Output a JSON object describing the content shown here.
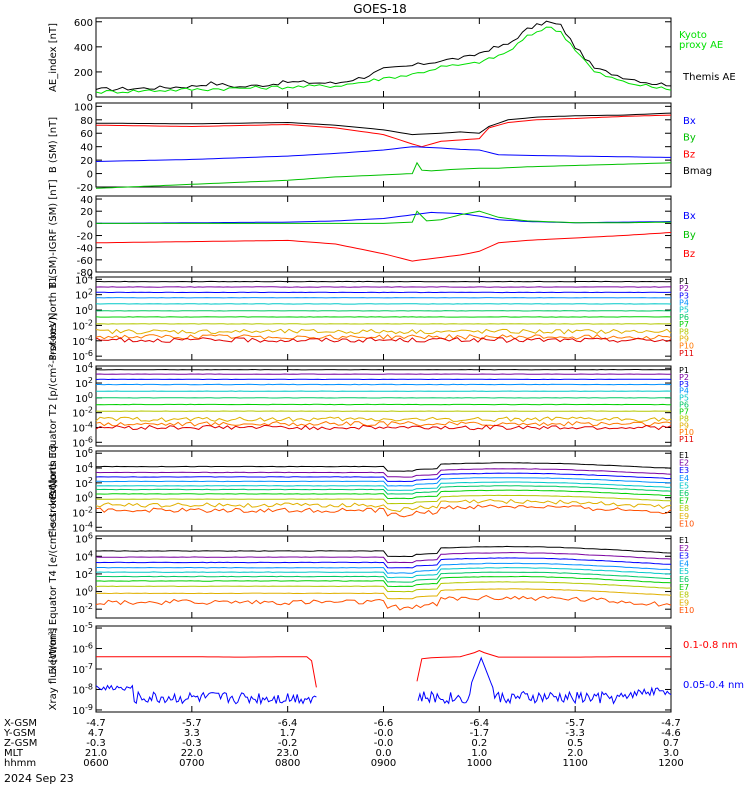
{
  "title": "GOES-18",
  "date_label": "2024 Sep 23",
  "x_axis": {
    "ticks": [
      "0600",
      "0700",
      "0800",
      "0900",
      "1000",
      "1100",
      "1200"
    ],
    "rows": [
      {
        "label": "X-GSM",
        "values": [
          "-4.7",
          "-5.7",
          "-6.4",
          "-6.6",
          "-6.4",
          "-5.7",
          "-4.7"
        ]
      },
      {
        "label": "Y-GSM",
        "values": [
          "4.7",
          "3.3",
          "1.7",
          "-0.0",
          "-1.7",
          "-3.3",
          "-4.6"
        ]
      },
      {
        "label": "Z-GSM",
        "values": [
          "-0.3",
          "-0.3",
          "-0.2",
          "-0.0",
          "0.2",
          "0.5",
          "0.7"
        ]
      },
      {
        "label": "MLT",
        "values": [
          "21.0",
          "22.0",
          "23.0",
          "0.0",
          "1.0",
          "2.0",
          "3.0"
        ]
      },
      {
        "label": "hhmm",
        "values": [
          "0600",
          "0700",
          "0800",
          "0900",
          "1000",
          "1100",
          "1200"
        ]
      }
    ]
  },
  "colors": {
    "p_channels": [
      "#000000",
      "#7a00a0",
      "#0000ff",
      "#0090ff",
      "#00c8c8",
      "#00c864",
      "#00d000",
      "#b4c800",
      "#e0b000",
      "#ff7800",
      "#e00000",
      "#a00000"
    ],
    "e_channels": [
      "#000000",
      "#7a00a0",
      "#0000ff",
      "#0090ff",
      "#00c8c8",
      "#00c864",
      "#00d000",
      "#b4c800",
      "#e0b000",
      "#ff5000",
      "#d00000",
      "#a00000"
    ]
  },
  "chart_data": [
    {
      "type": "line",
      "ylabel": "AE_index [nT]",
      "yticks": [
        "0",
        "200",
        "400",
        "600"
      ],
      "ylim": [
        0,
        630
      ],
      "legend": [
        {
          "text": "Kyoto",
          "color": "#00e000"
        },
        {
          "text": "proxy AE",
          "color": "#00e000"
        },
        {
          "text": "Themis AE",
          "color": "#000000"
        }
      ],
      "series": [
        {
          "name": "Themis AE",
          "color": "#000000",
          "x": [
            6,
            6.5,
            7,
            7.2,
            7.5,
            7.8,
            8,
            8.5,
            8.8,
            9.0,
            9.3,
            9.6,
            9.9,
            10.1,
            10.3,
            10.5,
            10.7,
            10.85,
            11,
            11.2,
            11.5,
            11.8,
            12
          ],
          "y": [
            60,
            70,
            85,
            110,
            80,
            100,
            120,
            110,
            160,
            220,
            250,
            290,
            320,
            380,
            420,
            540,
            600,
            570,
            400,
            230,
            160,
            110,
            100
          ]
        },
        {
          "name": "Kyoto proxy AE",
          "color": "#00e000",
          "x": [
            6,
            6.5,
            7,
            7.5,
            8,
            8.5,
            8.8,
            9.0,
            9.3,
            9.6,
            9.9,
            10.1,
            10.3,
            10.5,
            10.7,
            10.85,
            11,
            11.2,
            11.5,
            11.8,
            12
          ],
          "y": [
            40,
            50,
            60,
            70,
            80,
            90,
            120,
            150,
            180,
            240,
            260,
            300,
            360,
            480,
            560,
            520,
            380,
            200,
            120,
            80,
            60
          ]
        }
      ]
    },
    {
      "type": "line",
      "ylabel": "B (SM) [nT]",
      "yticks": [
        "-20",
        "0",
        "20",
        "40",
        "60",
        "80",
        "100"
      ],
      "ylim": [
        -20,
        105
      ],
      "legend": [
        {
          "text": "Bx",
          "color": "#0000ff"
        },
        {
          "text": "By",
          "color": "#00c000"
        },
        {
          "text": "Bz",
          "color": "#ff0000"
        },
        {
          "text": "Bmag",
          "color": "#000000"
        }
      ],
      "series": [
        {
          "name": "Bmag",
          "color": "#000000",
          "x": [
            6,
            7,
            8,
            8.5,
            9,
            9.3,
            9.6,
            9.8,
            10.0,
            10.1,
            10.3,
            10.6,
            11,
            11.5,
            12
          ],
          "y": [
            75,
            74,
            76,
            72,
            65,
            58,
            60,
            62,
            60,
            70,
            80,
            84,
            86,
            87,
            90
          ]
        },
        {
          "name": "Bz",
          "color": "#ff0000",
          "x": [
            6,
            7,
            8,
            8.5,
            9,
            9.3,
            9.4,
            9.6,
            9.8,
            10.0,
            10.1,
            10.3,
            10.6,
            11,
            11.5,
            12
          ],
          "y": [
            72,
            70,
            73,
            68,
            58,
            44,
            40,
            48,
            50,
            52,
            68,
            76,
            80,
            82,
            85,
            87
          ]
        },
        {
          "name": "Bx",
          "color": "#0000ff",
          "x": [
            6,
            7,
            8,
            8.5,
            9,
            9.3,
            9.6,
            9.8,
            10.0,
            10.2,
            10.5,
            11,
            11.5,
            12
          ],
          "y": [
            18,
            21,
            26,
            30,
            35,
            40,
            38,
            36,
            35,
            28,
            27,
            26,
            25,
            24
          ]
        },
        {
          "name": "By",
          "color": "#00c000",
          "x": [
            6,
            7,
            8,
            8.5,
            9,
            9.3,
            9.35,
            9.4,
            9.5,
            9.7,
            10.0,
            10.2,
            10.5,
            11,
            11.5,
            12
          ],
          "y": [
            -22,
            -16,
            -10,
            -5,
            -2,
            0,
            16,
            5,
            4,
            6,
            8,
            8,
            10,
            12,
            14,
            16
          ]
        }
      ]
    },
    {
      "type": "line",
      "ylabel": "B (SM)-IGRF (SM) [nT]",
      "yticks": [
        "-80",
        "-60",
        "-40",
        "-20",
        "0",
        "20",
        "40"
      ],
      "ylim": [
        -80,
        45
      ],
      "legend": [
        {
          "text": "Bx",
          "color": "#0000ff"
        },
        {
          "text": "By",
          "color": "#00c000"
        },
        {
          "text": "Bz",
          "color": "#ff0000"
        }
      ],
      "series": [
        {
          "name": "Bz",
          "color": "#ff0000",
          "x": [
            6,
            7,
            8,
            8.5,
            9,
            9.3,
            9.5,
            9.8,
            10.0,
            10.2,
            10.5,
            11,
            11.5,
            12
          ],
          "y": [
            -32,
            -30,
            -28,
            -34,
            -50,
            -62,
            -58,
            -52,
            -46,
            -32,
            -28,
            -24,
            -20,
            -15
          ]
        },
        {
          "name": "Bx",
          "color": "#0000ff",
          "x": [
            6,
            7,
            8,
            8.5,
            9,
            9.3,
            9.5,
            9.8,
            10.0,
            10.2,
            10.5,
            11,
            11.5,
            12
          ],
          "y": [
            0,
            1,
            2,
            4,
            8,
            14,
            18,
            16,
            12,
            6,
            3,
            1,
            2,
            3
          ]
        },
        {
          "name": "By",
          "color": "#00c000",
          "x": [
            6,
            7,
            8,
            8.5,
            9,
            9.3,
            9.35,
            9.45,
            9.6,
            9.8,
            10.0,
            10.2,
            10.5,
            11,
            11.5,
            12
          ],
          "y": [
            0,
            0,
            0,
            0,
            0,
            2,
            20,
            4,
            6,
            14,
            20,
            10,
            4,
            1,
            1,
            2
          ]
        }
      ]
    },
    {
      "type": "line",
      "ylabel": "Protons North T1",
      "log": true,
      "yticks": [
        "10^4",
        "10^2",
        "10^0",
        "10^-2",
        "10^-4",
        "10^-6"
      ],
      "ylim": [
        -6.5,
        4.3
      ],
      "legend": [
        "P1",
        "P2",
        "P3",
        "P4",
        "P5",
        "P6",
        "P7",
        "P8",
        "P9",
        "P10",
        "P11"
      ],
      "levels": [
        3.7,
        3.0,
        2.3,
        1.6,
        0.8,
        -0.1,
        -0.9,
        -1.8,
        -2.8,
        -3.5,
        -3.9
      ],
      "noisy_from": 8
    },
    {
      "type": "line",
      "ylabel": "Protons Equator T2 [p/(cm²-s-sr-keV)]",
      "log": true,
      "yticks": [
        "10^4",
        "10^2",
        "10^0",
        "10^-2",
        "10^-4",
        "10^-6"
      ],
      "ylim": [
        -6.5,
        4.3
      ],
      "legend": [
        "P1",
        "P2",
        "P3",
        "P4",
        "P5",
        "P6",
        "P7",
        "P8",
        "P9",
        "P10",
        "P11"
      ],
      "levels": [
        3.8,
        3.2,
        2.5,
        1.8,
        0.9,
        0.0,
        -0.9,
        -1.8,
        -2.9,
        -3.5,
        -4.0
      ],
      "noisy_from": 8
    },
    {
      "type": "line",
      "ylabel": "Electrons North T3",
      "log": true,
      "yticks": [
        "10^6",
        "10^4",
        "10^2",
        "10^0",
        "10^-2",
        "10^-4"
      ],
      "ylim": [
        -4.5,
        6.3
      ],
      "legend": [
        "E1",
        "E2",
        "E3",
        "E4",
        "E5",
        "E6",
        "E7",
        "E8",
        "E9",
        "E10"
      ],
      "levels": [
        4.2,
        3.4,
        2.8,
        2.2,
        1.6,
        1.1,
        0.5,
        -0.2,
        -1.0,
        -1.7
      ],
      "noisy_from": 8
    },
    {
      "type": "line",
      "ylabel": "Electrons Equator T4 [e/(cm²-s-sr-keV)]",
      "log": true,
      "yticks": [
        "10^6",
        "10^4",
        "10^2",
        "10^0",
        "10^-2"
      ],
      "ylim": [
        -3.0,
        6.3
      ],
      "legend": [
        "E1",
        "E2",
        "E3",
        "E4",
        "E5",
        "E6",
        "E7",
        "E8",
        "E9",
        "E10"
      ],
      "levels": [
        4.6,
        3.9,
        3.3,
        2.7,
        2.2,
        1.7,
        1.2,
        0.6,
        -0.2,
        -1.2
      ],
      "noisy_from": 9
    },
    {
      "type": "line",
      "ylabel": "Xray flux [W/m²]",
      "log": true,
      "yticks": [
        "10^-5",
        "10^-6",
        "10^-7",
        "10^-8",
        "10^-9"
      ],
      "ylim": [
        -9.1,
        -4.9
      ],
      "legend": [
        {
          "text": "0.1-0.8 nm",
          "color": "#ff0000"
        },
        {
          "text": "0.05-0.4 nm",
          "color": "#0000ff"
        }
      ],
      "series": [
        {
          "name": "0.1-0.8 nm",
          "color": "#ff0000",
          "x": [
            6,
            6.5,
            7,
            7.5,
            8,
            8.2,
            8.25,
            8.3
          ],
          "y": [
            -6.4,
            -6.4,
            -6.4,
            -6.42,
            -6.4,
            -6.4,
            -6.6,
            -7.9
          ]
        },
        {
          "name": "0.1-0.8 nm b",
          "color": "#ff0000",
          "x": [
            9.35,
            9.4,
            9.5,
            9.8,
            9.95,
            10.0,
            10.05,
            10.2,
            10.5,
            11,
            11.5,
            12
          ],
          "y": [
            -7.6,
            -6.5,
            -6.45,
            -6.4,
            -6.2,
            -6.1,
            -6.2,
            -6.42,
            -6.42,
            -6.42,
            -6.4,
            -6.4
          ]
        }
      ]
    }
  ]
}
